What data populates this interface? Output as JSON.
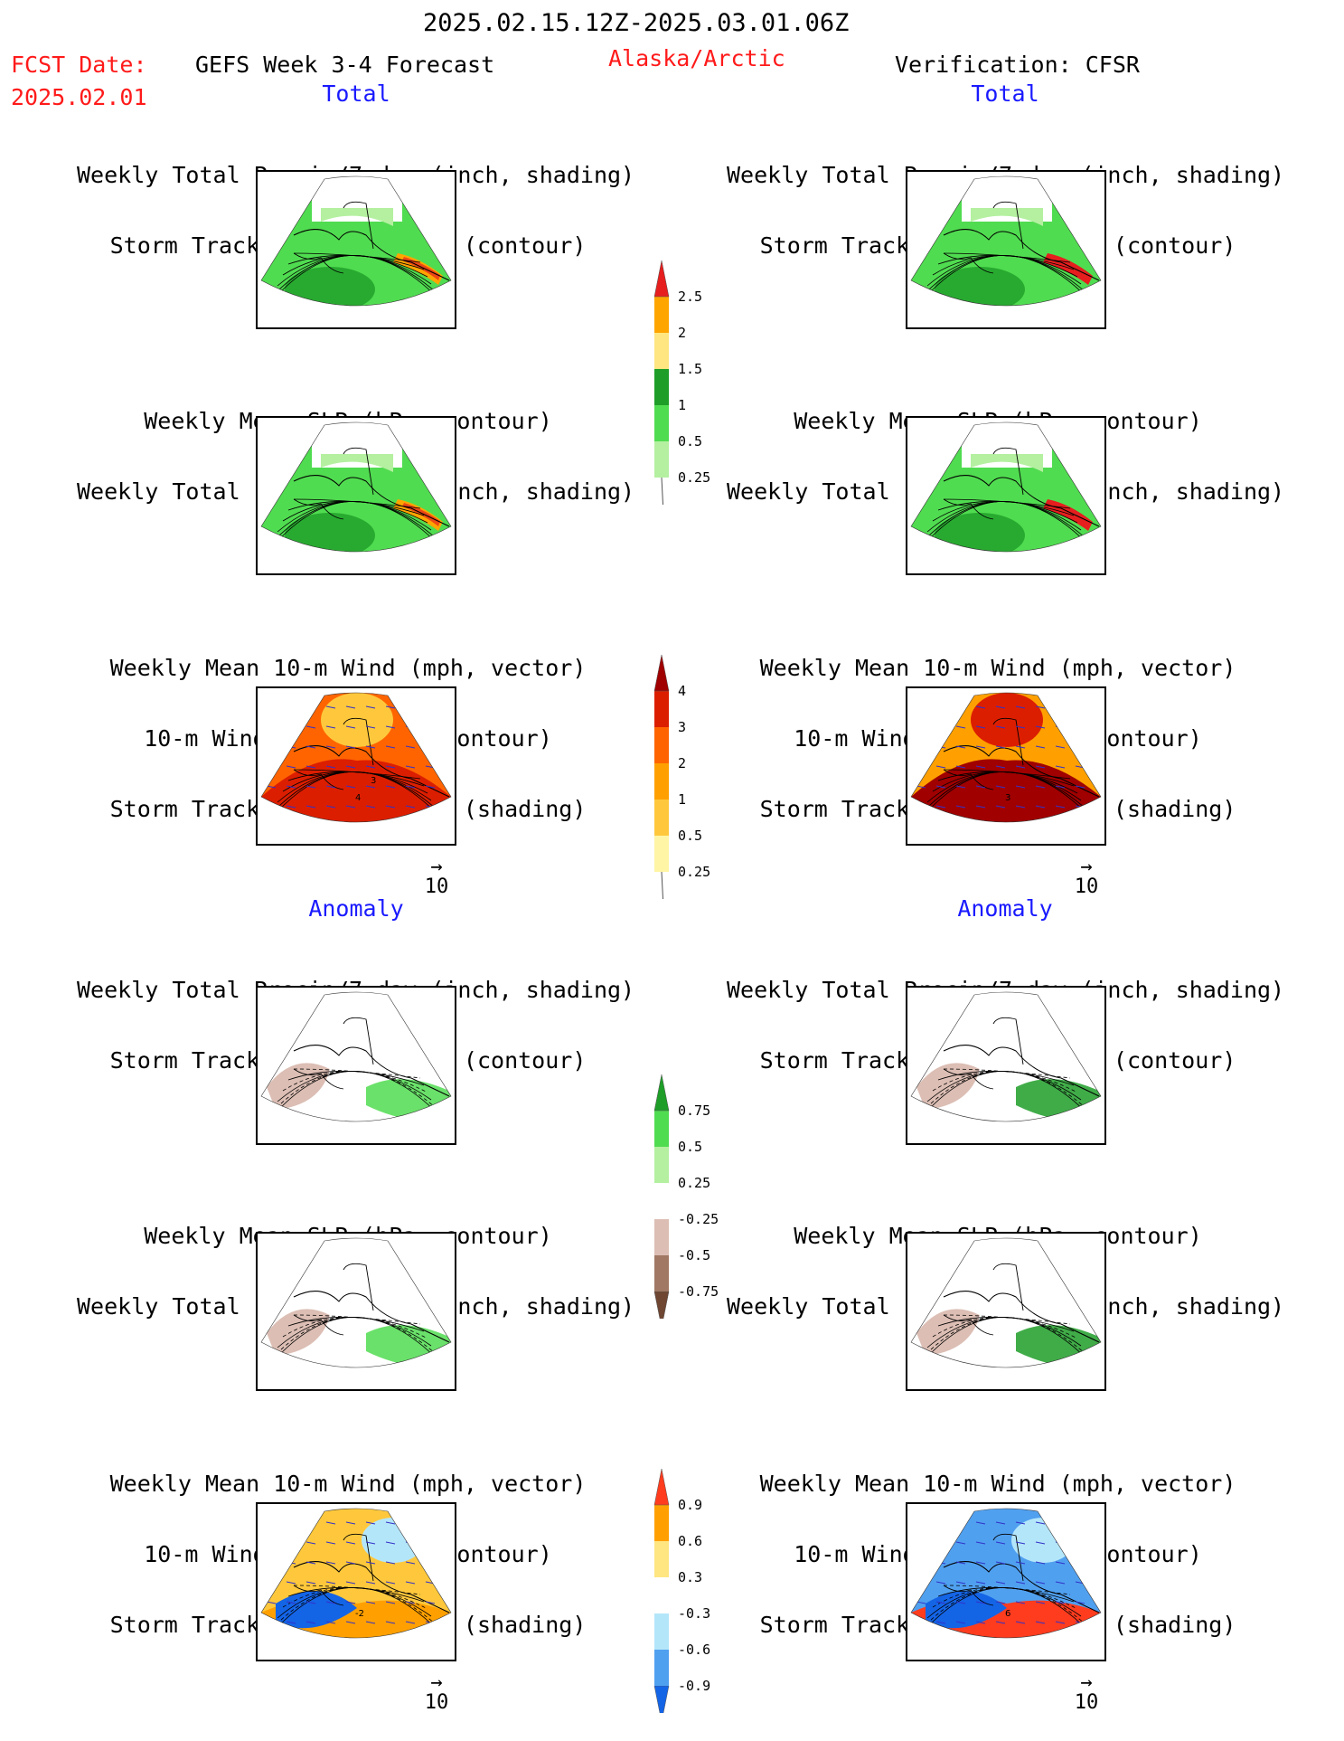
{
  "header": {
    "date_range": "2025.02.15.12Z-2025.03.01.06Z",
    "fcst_label": "FCST Date:",
    "fcst_date": "2025.02.01",
    "forecast_title": "GEFS Week 3-4 Forecast",
    "region": "Alaska/Arctic",
    "verification": "Verification: CFSR"
  },
  "sections": {
    "total": "Total",
    "anomaly": "Anomaly"
  },
  "titles": {
    "precip_storm": [
      "Weekly Total Precip/7-day (inch, shading)",
      "Storm Track Density/7-day (contour)"
    ],
    "slp_precip": [
      "Weekly Mean SLP (hPa, contour)",
      "Weekly Total Precip/7-day (inch, shading)"
    ],
    "wind_storm": [
      "Weekly Mean 10-m Wind (mph, vector)",
      "10-m Wind Speed (mph, contour)",
      "Storm Track Density/7-day (shading)"
    ]
  },
  "vector_scale": {
    "arrow": "→",
    "value": "10"
  },
  "colorbars": {
    "precip_total": {
      "colors": [
        "#ffffff",
        "#b4f0a0",
        "#50dc50",
        "#1e9e28",
        "#ffe680",
        "#ffa500",
        "#e61e1e"
      ],
      "labels": [
        "0.25",
        "0.5",
        "1",
        "1.5",
        "2",
        "2.5"
      ]
    },
    "storm_total": {
      "colors": [
        "#ffffff",
        "#fff5a5",
        "#ffc83c",
        "#ffa000",
        "#ff6400",
        "#dc1e00",
        "#a00000"
      ],
      "labels": [
        "0.25",
        "0.5",
        "1",
        "2",
        "3",
        "4"
      ]
    },
    "precip_anom": {
      "colors": [
        "#6e4632",
        "#a07864",
        "#dcbeb4",
        "#ffffff",
        "#b4f0a0",
        "#50dc50",
        "#1e9e28"
      ],
      "labels": [
        "-0.75",
        "-0.5",
        "-0.25",
        "0.25",
        "0.5",
        "0.75"
      ]
    },
    "storm_anom": {
      "colors": [
        "#1464e6",
        "#50a0f0",
        "#b4e6fa",
        "#ffffff",
        "#ffe680",
        "#ffa000",
        "#ff3c1e"
      ],
      "labels": [
        "-0.9",
        "-0.6",
        "-0.3",
        "0.3",
        "0.6",
        "0.9"
      ]
    }
  },
  "panels": {
    "fcst_total_precip": {
      "base": "#50dc50",
      "accent": "#1e9e28",
      "hot": "#ffa500",
      "storm_label": ""
    },
    "fcst_total_slp": {
      "base": "#50dc50",
      "accent": "#1e9e28",
      "hot": "#ffa500",
      "storm_label": ""
    },
    "fcst_total_wind": {
      "base": "#ff6400",
      "accent": "#dc1e00",
      "hot": "#ffc83c",
      "storm_label": "4",
      "storm_label2": "3"
    },
    "cfsr_total_precip": {
      "base": "#50dc50",
      "accent": "#1e9e28",
      "hot": "#e61e1e",
      "storm_label": ""
    },
    "cfsr_total_slp": {
      "base": "#50dc50",
      "accent": "#1e9e28",
      "hot": "#e61e1e",
      "storm_label": ""
    },
    "cfsr_total_wind": {
      "base": "#ffa000",
      "accent": "#a00000",
      "hot": "#dc1e00",
      "storm_label": "3"
    },
    "fcst_anom_precip": {
      "base": "#ffffff",
      "accent": "#dcbeb4",
      "hot": "#50dc50",
      "storm_label": ""
    },
    "fcst_anom_slp": {
      "base": "#ffffff",
      "accent": "#dcbeb4",
      "hot": "#50dc50",
      "storm_label": ""
    },
    "fcst_anom_wind": {
      "base": "#ffc83c",
      "accent": "#1464e6",
      "hot": "#ffa000",
      "storm_label": "-2"
    },
    "cfsr_anom_precip": {
      "base": "#ffffff",
      "accent": "#dcbeb4",
      "hot": "#1e9e28",
      "storm_label": ""
    },
    "cfsr_anom_slp": {
      "base": "#ffffff",
      "accent": "#dcbeb4",
      "hot": "#1e9e28",
      "storm_label": ""
    },
    "cfsr_anom_wind": {
      "base": "#50a0f0",
      "accent": "#1464e6",
      "hot": "#ff3c1e",
      "storm_label": "6"
    }
  }
}
